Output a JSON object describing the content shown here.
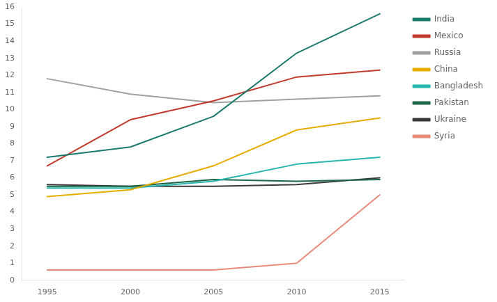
{
  "chart_data": {
    "type": "line",
    "x": [
      1995,
      2000,
      2005,
      2010,
      2015
    ],
    "series": [
      {
        "name": "India",
        "color": "#1b7a6e",
        "values": [
          7.2,
          7.8,
          9.6,
          13.3,
          15.6
        ]
      },
      {
        "name": "Mexico",
        "color": "#c0392b",
        "values": [
          6.7,
          9.4,
          10.5,
          11.9,
          12.3
        ]
      },
      {
        "name": "Russia",
        "color": "#a0a0a0",
        "values": [
          11.8,
          10.9,
          10.4,
          10.6,
          10.8
        ]
      },
      {
        "name": "China",
        "color": "#e6ac00",
        "values": [
          4.9,
          5.3,
          6.7,
          8.8,
          9.5
        ]
      },
      {
        "name": "Bangladesh",
        "color": "#27b5b0",
        "values": [
          5.4,
          5.4,
          5.8,
          6.8,
          7.2
        ]
      },
      {
        "name": "Pakistan",
        "color": "#1a6645",
        "values": [
          5.5,
          5.5,
          5.9,
          5.8,
          5.9
        ]
      },
      {
        "name": "Ukraine",
        "color": "#3a3a3a",
        "values": [
          5.6,
          5.5,
          5.5,
          5.6,
          6.0
        ]
      },
      {
        "name": "Syria",
        "color": "#e8897a",
        "values": [
          0.6,
          0.6,
          0.6,
          1.0,
          5.0
        ]
      }
    ],
    "xlim": [
      1993.5,
      2016.5
    ],
    "xticks": [
      1995,
      2000,
      2005,
      2010,
      2015
    ],
    "ylim": [
      0,
      16
    ],
    "yticks": [
      0,
      1,
      2,
      3,
      4,
      5,
      6,
      7,
      8,
      9,
      10,
      11,
      12,
      13,
      14,
      15,
      16
    ],
    "grid": false,
    "legend": "right"
  }
}
